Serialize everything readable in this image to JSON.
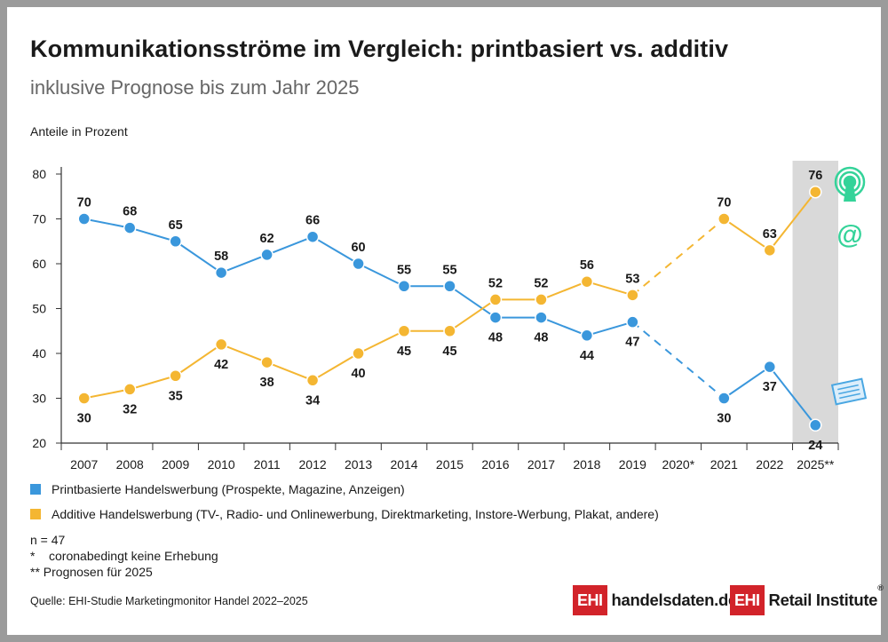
{
  "title": "Kommunikationsströme im Vergleich: printbasiert vs. additiv",
  "subtitle": "inklusive Prognose bis zum Jahr 2025",
  "colors": {
    "print": "#3a97dc",
    "additive": "#f4b632",
    "forecast_band": "#d9d9d9",
    "text": "#1a1a1a",
    "logo_red": "#d2232a",
    "icon_green": "#34d399",
    "icon_blue": "#4aa7e2"
  },
  "chart_data": {
    "type": "line",
    "title": "Kommunikationsströme im Vergleich: printbasiert vs. additiv",
    "subtitle": "inklusive Prognose bis zum Jahr 2025",
    "ylabel": "Anteile in Prozent",
    "xlabel": "",
    "ylim": [
      20,
      80
    ],
    "yticks": [
      20,
      30,
      40,
      50,
      60,
      70,
      80
    ],
    "grid": false,
    "legend_position": "bottom",
    "categories": [
      "2007",
      "2008",
      "2009",
      "2010",
      "2011",
      "2012",
      "2013",
      "2014",
      "2015",
      "2016",
      "2017",
      "2018",
      "2019",
      "2020*",
      "2021",
      "2022",
      "2025**"
    ],
    "forecast_category": "2025**",
    "missing_category": "2020*",
    "series": [
      {
        "name": "Printbasierte Handelswerbung (Prospekte, Magazine, Anzeigen)",
        "values": [
          70,
          68,
          65,
          58,
          62,
          66,
          60,
          55,
          55,
          48,
          48,
          44,
          47,
          null,
          30,
          37,
          24
        ]
      },
      {
        "name": "Additive Handelswerbung (TV-, Radio- und Onlinewerbung, Direktmarketing, Instore-Werbung, Plakat, andere)",
        "values": [
          30,
          32,
          35,
          42,
          38,
          34,
          40,
          45,
          45,
          52,
          52,
          56,
          53,
          null,
          70,
          63,
          76
        ]
      }
    ]
  },
  "notes": [
    "n = 47",
    "*    coronabedingt keine Erhebung",
    "** Prognosen für 2025"
  ],
  "source": "Quelle: EHI-Studie Marketingmonitor Handel 2022–2025",
  "logos": {
    "left": {
      "box": "EHI",
      "text": "handelsdaten.de"
    },
    "right": {
      "box": "EHI",
      "text": "Retail Institute",
      "reg": "®"
    }
  },
  "icons": [
    "radio-tower-icon",
    "at-sign-icon",
    "newspaper-icon"
  ]
}
